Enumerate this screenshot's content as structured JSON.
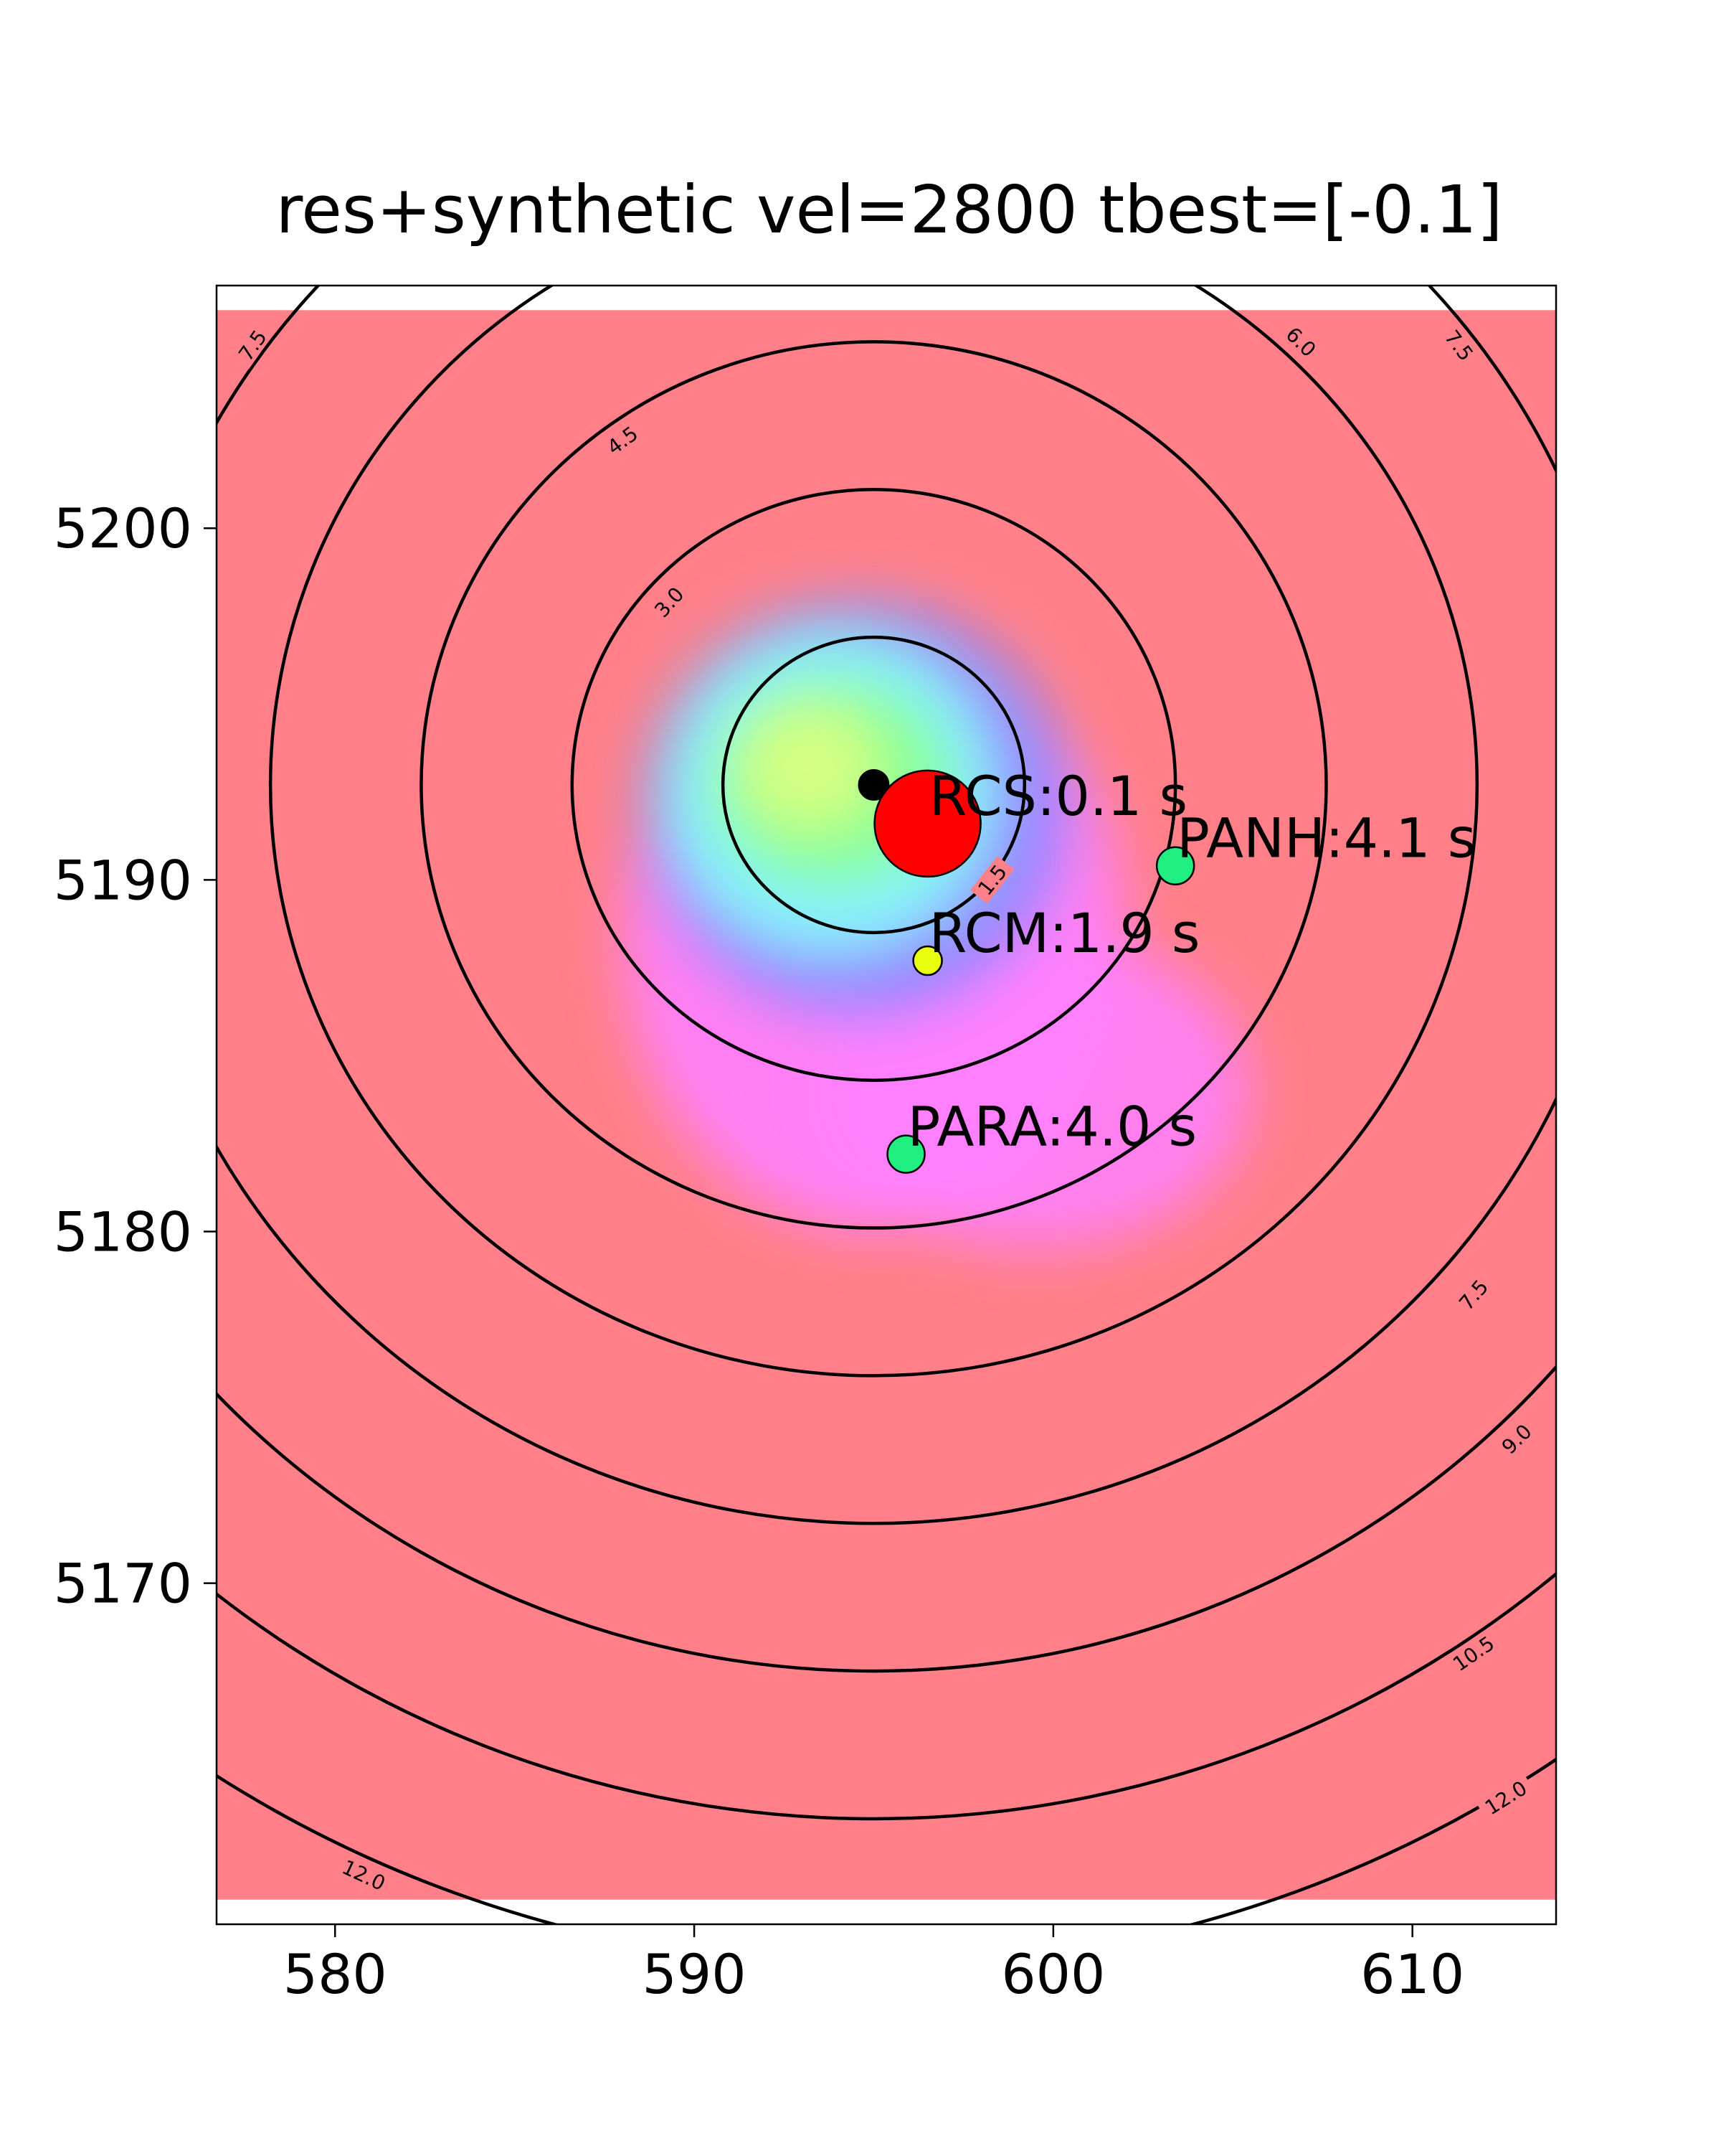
{
  "chart_data": {
    "type": "heatmap",
    "title": "res+synthetic vel=2800 tbest=[-0.1]",
    "xlabel": "",
    "ylabel": "",
    "xlim": [
      576.7,
      614.0
    ],
    "ylim": [
      5160.3,
      5206.9
    ],
    "field_extent": {
      "x": [
        576.7,
        614.0
      ],
      "y": [
        5161.0,
        5206.2
      ]
    },
    "x_ticks": [
      580,
      590,
      600,
      610
    ],
    "y_ticks": [
      5170,
      5180,
      5190,
      5200
    ],
    "grid": false,
    "background_color": "#ff8088",
    "misfit_blobs": [
      {
        "cx": 595.0,
        "cy": 5188.5,
        "rx": 7.0,
        "ry": 8.5,
        "color": "#ff80ff",
        "opacity": 0.9
      },
      {
        "cx": 599.5,
        "cy": 5184.0,
        "rx": 6.0,
        "ry": 4.5,
        "color": "#ff80ff",
        "opacity": 0.85
      },
      {
        "cx": 594.5,
        "cy": 5192.0,
        "rx": 6.0,
        "ry": 6.0,
        "color": "#8888ff",
        "opacity": 0.9
      },
      {
        "cx": 593.8,
        "cy": 5192.5,
        "rx": 4.6,
        "ry": 4.6,
        "color": "#88ffff",
        "opacity": 0.9
      },
      {
        "cx": 593.8,
        "cy": 5192.8,
        "rx": 3.4,
        "ry": 3.0,
        "color": "#88ff88",
        "opacity": 0.9
      },
      {
        "cx": 593.2,
        "cy": 5193.2,
        "rx": 2.0,
        "ry": 1.8,
        "color": "#ddff80",
        "opacity": 0.9
      }
    ],
    "contours": {
      "center": {
        "x": 595.0,
        "y": 5192.7
      },
      "levels": [
        1.5,
        3.0,
        4.5,
        6.0,
        7.5,
        9.0,
        10.5,
        12.0
      ],
      "radii_km": [
        4.2,
        8.4,
        12.6,
        16.8,
        21.0,
        25.2,
        29.4,
        33.6
      ],
      "labels": [
        {
          "text": "1.5",
          "x": 598.3,
          "y": 5190.0
        },
        {
          "text": "3.0",
          "x": 589.3,
          "y": 5197.9
        },
        {
          "text": "4.5",
          "x": 588.0,
          "y": 5202.5
        },
        {
          "text": "6.0",
          "x": 606.9,
          "y": 5205.3
        },
        {
          "text": "7.5",
          "x": 577.7,
          "y": 5205.2
        },
        {
          "text": "7.5",
          "x": 611.3,
          "y": 5205.2
        },
        {
          "text": "7.5",
          "x": 611.7,
          "y": 5178.2
        },
        {
          "text": "9.0",
          "x": 612.9,
          "y": 5174.1
        },
        {
          "text": "10.5",
          "x": 611.7,
          "y": 5168.0
        },
        {
          "text": "12.0",
          "x": 612.6,
          "y": 5163.9
        },
        {
          "text": "12.0",
          "x": 580.8,
          "y": 5161.7
        }
      ]
    },
    "epicenter": {
      "x": 595.0,
      "y": 5192.7,
      "color": "#000000"
    },
    "best_location": {
      "x": 596.5,
      "y": 5191.6,
      "color": "#ff0000"
    },
    "stations": [
      {
        "label": "RCS:0.1 s",
        "x": 596.5,
        "y": 5191.6,
        "color": "#ff0000",
        "size": "large"
      },
      {
        "label": "PANH:4.1 s",
        "x": 603.4,
        "y": 5190.4,
        "color": "#20ee80",
        "size": "medium"
      },
      {
        "label": "RCM:1.9 s",
        "x": 596.5,
        "y": 5187.7,
        "color": "#e8ff10",
        "size": "small"
      },
      {
        "label": "PARA:4.0 s",
        "x": 595.9,
        "y": 5182.2,
        "color": "#20ee80",
        "size": "medium"
      }
    ]
  }
}
